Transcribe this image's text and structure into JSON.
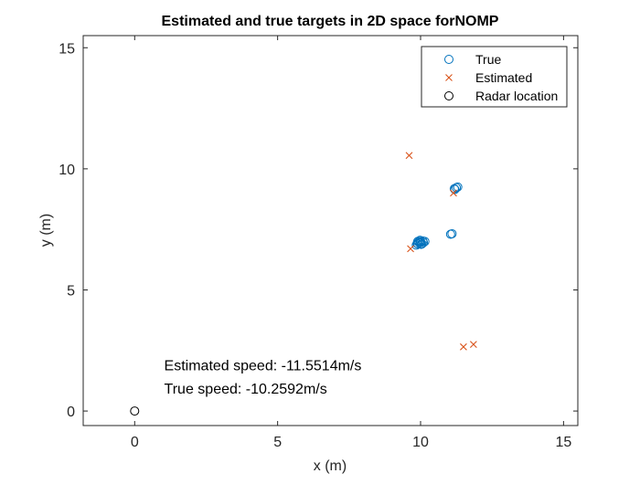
{
  "chart_data": {
    "type": "scatter",
    "title": "Estimated and true targets in 2D space forNOMP",
    "xlabel": "x (m)",
    "ylabel": "y (m)",
    "xlim": [
      -1.8,
      15.5
    ],
    "ylim": [
      -0.6,
      15.5
    ],
    "xticks": [
      0,
      5,
      10,
      15
    ],
    "yticks": [
      0,
      5,
      10,
      15
    ],
    "grid": false,
    "legend_position": "top-right",
    "series": [
      {
        "name": "True",
        "marker": "circle",
        "color": "#0072BD",
        "points": [
          [
            9.85,
            6.85
          ],
          [
            9.9,
            6.9
          ],
          [
            9.95,
            6.95
          ],
          [
            10.0,
            6.95
          ],
          [
            10.05,
            6.9
          ],
          [
            9.9,
            7.0
          ],
          [
            9.95,
            7.0
          ],
          [
            10.0,
            7.0
          ],
          [
            10.1,
            6.95
          ],
          [
            10.15,
            7.0
          ],
          [
            9.88,
            6.92
          ],
          [
            10.02,
            6.88
          ],
          [
            10.08,
            7.02
          ],
          [
            9.98,
            7.05
          ],
          [
            11.05,
            7.3
          ],
          [
            11.1,
            7.32
          ],
          [
            11.2,
            9.15
          ],
          [
            11.25,
            9.22
          ],
          [
            11.3,
            9.25
          ],
          [
            11.18,
            9.18
          ]
        ]
      },
      {
        "name": "Estimated",
        "marker": "x",
        "color": "#D95319",
        "points": [
          [
            9.6,
            10.55
          ],
          [
            9.65,
            6.7
          ],
          [
            11.15,
            9.0
          ],
          [
            11.5,
            2.65
          ],
          [
            11.85,
            2.75
          ]
        ]
      },
      {
        "name": "Radar location",
        "marker": "circle",
        "color": "#000000",
        "points": [
          [
            0,
            0
          ]
        ]
      }
    ],
    "annotations": [
      {
        "text": "Estimated speed: -11.5514m/s",
        "x": 1.0,
        "y": 1.9
      },
      {
        "text": "True speed: -10.2592m/s",
        "x": 1.0,
        "y": 0.95
      }
    ]
  }
}
